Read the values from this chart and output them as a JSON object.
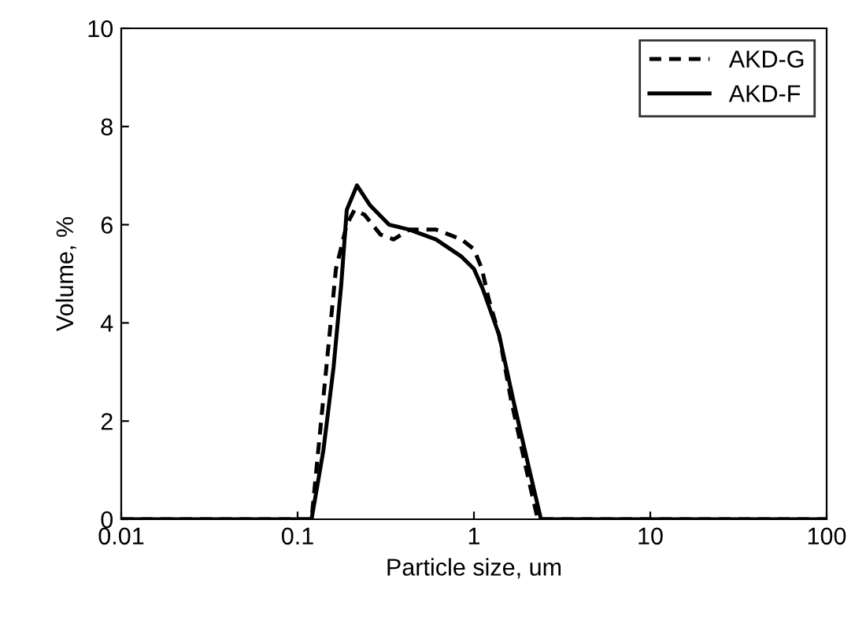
{
  "chart_data": {
    "type": "line",
    "xlabel": "Particle size, um",
    "ylabel": "Volume, %",
    "log": "x",
    "xlim": [
      0.01,
      100
    ],
    "xticks": [
      0.01,
      0.1,
      1,
      10,
      100
    ],
    "ylim": [
      0,
      10
    ],
    "yticks": [
      0,
      2,
      4,
      6,
      8,
      10
    ],
    "grid": false,
    "legend": "top right",
    "marker": "none",
    "series": [
      {
        "name": "AKD-G",
        "color": "#000000",
        "line_style": "dashed",
        "x": [
          0.01,
          0.12,
          0.165,
          0.19,
          0.21,
          0.24,
          0.295,
          0.35,
          0.43,
          0.61,
          0.85,
          1.0,
          1.11,
          1.21,
          1.39,
          1.62,
          2.0,
          2.3,
          100
        ],
        "values": [
          0,
          0,
          5.1,
          6.0,
          6.3,
          6.2,
          5.8,
          5.7,
          5.9,
          5.9,
          5.7,
          5.5,
          5.1,
          4.5,
          3.75,
          2.45,
          0.95,
          0,
          0
        ]
      },
      {
        "name": "AKD-F",
        "color": "#000000",
        "line_style": "solid",
        "x": [
          0.01,
          0.12,
          0.14,
          0.16,
          0.177,
          0.19,
          0.217,
          0.257,
          0.33,
          0.43,
          0.61,
          0.85,
          1.0,
          1.12,
          1.39,
          1.69,
          2.08,
          2.4,
          100
        ],
        "values": [
          0,
          0,
          1.4,
          3.1,
          4.8,
          6.3,
          6.8,
          6.4,
          6.0,
          5.9,
          5.7,
          5.35,
          5.1,
          4.7,
          3.75,
          2.35,
          0.95,
          0,
          0
        ]
      }
    ]
  }
}
